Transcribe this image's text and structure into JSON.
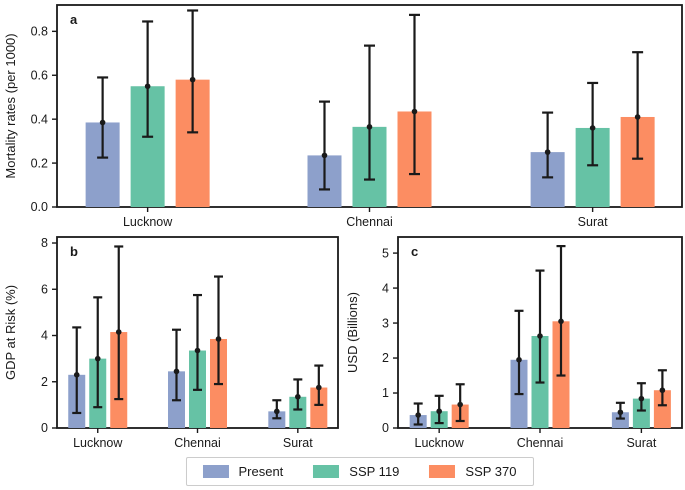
{
  "figure": {
    "background": "#ffffff",
    "axis_color": "#1a1a1a",
    "palette": [
      "#8da0cb",
      "#66c2a5",
      "#fc8d62"
    ],
    "legend": {
      "position": "bottom-center",
      "items": [
        {
          "label": "Present",
          "color": "#8da0cb"
        },
        {
          "label": "SSP 119",
          "color": "#66c2a5"
        },
        {
          "label": "SSP 370",
          "color": "#fc8d62"
        }
      ]
    }
  },
  "chart_data": [
    {
      "type": "bar",
      "panel_label": "a",
      "ylabel": "Mortality rates (per 1000)",
      "xlabel": "",
      "grid": false,
      "legend_position": "bottom-center-shared",
      "categories": [
        "Lucknow",
        "Chennai",
        "Surat"
      ],
      "ylim": [
        0,
        0.92
      ],
      "yticks": [
        0,
        0.2,
        0.4,
        0.6,
        0.8
      ],
      "ytick_labels": [
        "0.0",
        "0.2",
        "0.4",
        "0.6",
        "0.8"
      ],
      "series": [
        {
          "name": "Present",
          "values": [
            0.385,
            0.235,
            0.25
          ],
          "err_low": [
            0.225,
            0.08,
            0.135
          ],
          "err_high": [
            0.59,
            0.48,
            0.43
          ]
        },
        {
          "name": "SSP 119",
          "values": [
            0.55,
            0.365,
            0.36
          ],
          "err_low": [
            0.32,
            0.125,
            0.19
          ],
          "err_high": [
            0.845,
            0.735,
            0.565
          ]
        },
        {
          "name": "SSP 370",
          "values": [
            0.58,
            0.435,
            0.41
          ],
          "err_low": [
            0.34,
            0.15,
            0.22
          ],
          "err_high": [
            0.895,
            0.875,
            0.705
          ]
        }
      ]
    },
    {
      "type": "bar",
      "panel_label": "b",
      "ylabel": "GDP at Risk (%)",
      "xlabel": "",
      "grid": false,
      "categories": [
        "Lucknow",
        "Chennai",
        "Surat"
      ],
      "ylim": [
        0,
        8.26
      ],
      "yticks": [
        0,
        2,
        4,
        6,
        8
      ],
      "ytick_labels": [
        "0",
        "2",
        "4",
        "6",
        "8"
      ],
      "series": [
        {
          "name": "Present",
          "values": [
            2.3,
            2.45,
            0.72
          ],
          "err_low": [
            0.65,
            1.2,
            0.42
          ],
          "err_high": [
            4.35,
            4.25,
            1.2
          ]
        },
        {
          "name": "SSP 119",
          "values": [
            3.0,
            3.35,
            1.35
          ],
          "err_low": [
            0.9,
            1.65,
            0.8
          ],
          "err_high": [
            5.65,
            5.75,
            2.1
          ]
        },
        {
          "name": "SSP 370",
          "values": [
            4.15,
            3.85,
            1.75
          ],
          "err_low": [
            1.25,
            1.9,
            1.0
          ],
          "err_high": [
            7.85,
            6.55,
            2.7
          ]
        }
      ]
    },
    {
      "type": "bar",
      "panel_label": "c",
      "ylabel": "USD (Billions)",
      "xlabel": "",
      "grid": false,
      "categories": [
        "Lucknow",
        "Chennai",
        "Surat"
      ],
      "ylim": [
        0,
        5.46
      ],
      "yticks": [
        0,
        1,
        2,
        3,
        4,
        5
      ],
      "ytick_labels": [
        "0",
        "1",
        "2",
        "3",
        "4",
        "5"
      ],
      "series": [
        {
          "name": "Present",
          "values": [
            0.37,
            1.95,
            0.45
          ],
          "err_low": [
            0.1,
            0.97,
            0.27
          ],
          "err_high": [
            0.7,
            3.35,
            0.72
          ]
        },
        {
          "name": "SSP 119",
          "values": [
            0.48,
            2.63,
            0.84
          ],
          "err_low": [
            0.14,
            1.3,
            0.5
          ],
          "err_high": [
            0.92,
            4.5,
            1.28
          ]
        },
        {
          "name": "SSP 370",
          "values": [
            0.67,
            3.05,
            1.08
          ],
          "err_low": [
            0.2,
            1.5,
            0.65
          ],
          "err_high": [
            1.25,
            5.2,
            1.65
          ]
        }
      ]
    }
  ]
}
